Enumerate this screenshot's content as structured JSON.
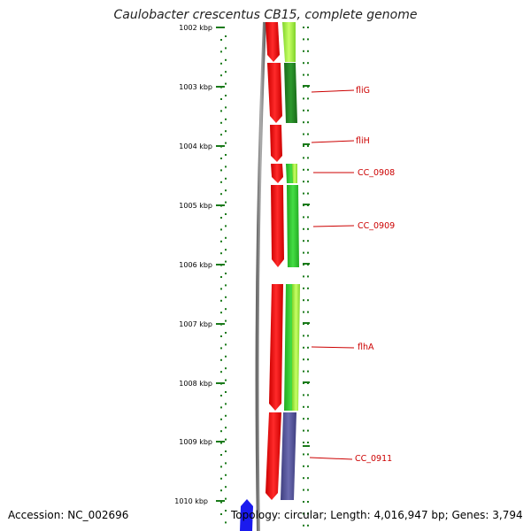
{
  "title": "Caulobacter crescentus CB15, complete genome",
  "footer": {
    "accession": "Accession: NC_002696",
    "summary": "Topology: circular; Length: 4,016,947 bp; Genes: 3,794"
  },
  "map": {
    "tick_labels": [
      "1002 kbp",
      "1003 kbp",
      "1004 kbp",
      "1005 kbp",
      "1006 kbp",
      "1007 kbp",
      "1008 kbp",
      "1009 kbp",
      "1010 kbp"
    ],
    "gene_labels": [
      "fliG",
      "fliH",
      "CC_0908",
      "CC_0909",
      "flhA",
      "CC_0911"
    ],
    "colors": {
      "cds": "#ee1111",
      "cds_dark": "#aa0000",
      "backbone": "#8a8a8a",
      "tick": "#1a7a1a",
      "label": "#cc0000",
      "reverse_strand_feature": "#1a1aee",
      "green_light": "#aaf04a",
      "green_mid": "#33cc33",
      "green_dark": "#2a8a2a",
      "purple": "#55559a"
    }
  }
}
